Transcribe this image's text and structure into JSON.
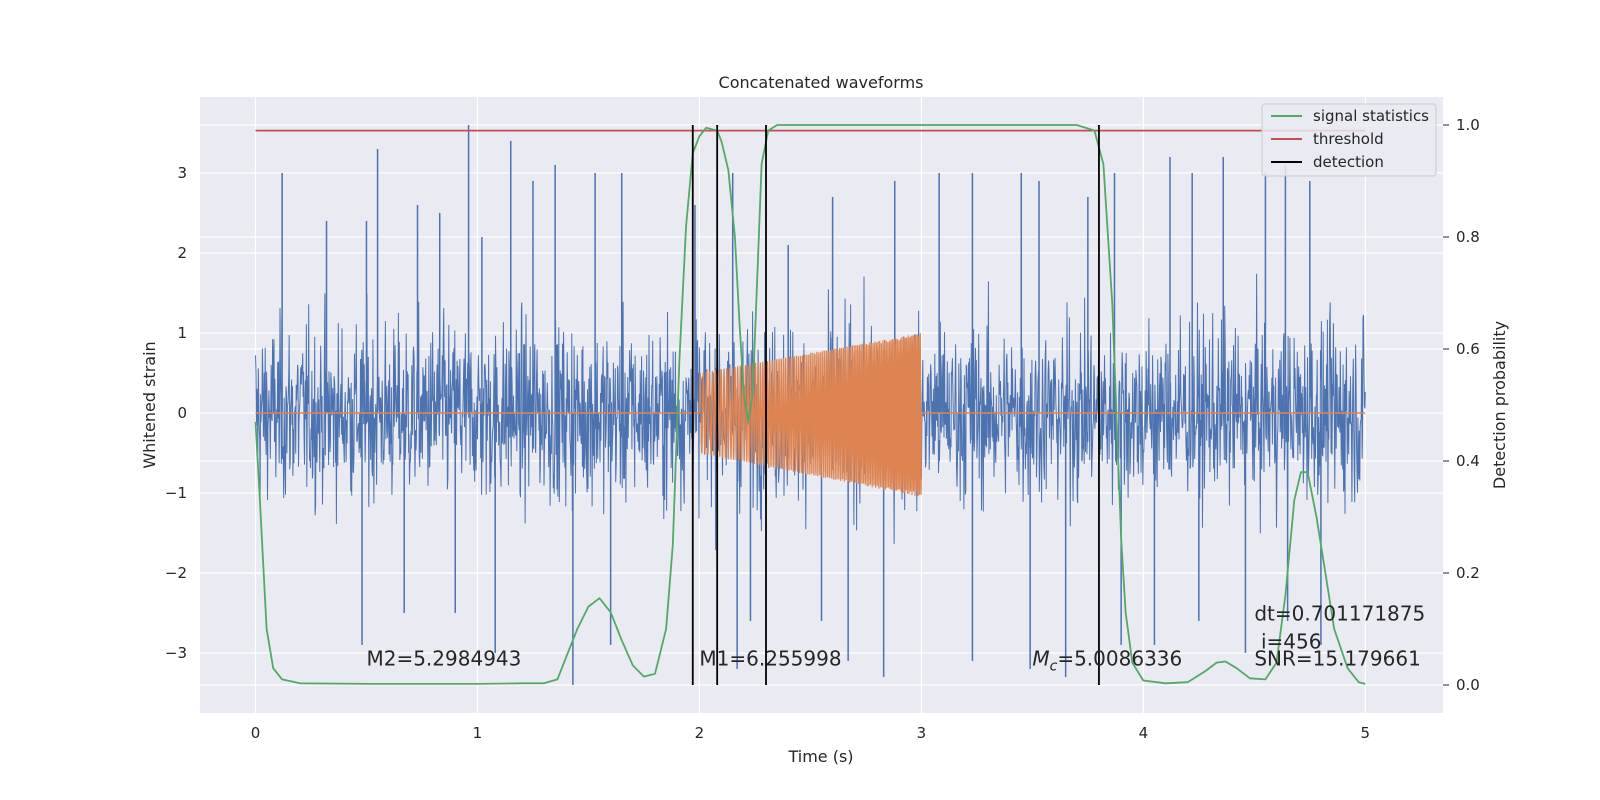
{
  "chart_data": {
    "type": "line",
    "title": "Concatenated waveforms",
    "xlabel": "Time (s)",
    "ylabel": "Whitened strain",
    "y2label": "Detection probability",
    "xlim": [
      -0.25,
      5.35
    ],
    "ylim": [
      -3.75,
      3.95
    ],
    "y2lim": [
      -0.05,
      1.05
    ],
    "x_ticks": [
      0,
      1,
      2,
      3,
      4,
      5
    ],
    "y_ticks": [
      -3,
      -2,
      -1,
      0,
      1,
      2,
      3
    ],
    "y_tick_labels": [
      "−3",
      "−2",
      "−1",
      "0",
      "1",
      "2",
      "3"
    ],
    "y2_ticks": [
      0.0,
      0.2,
      0.4,
      0.6,
      0.8,
      1.0
    ],
    "y2_tick_labels": [
      "0.0",
      "0.2",
      "0.4",
      "0.6",
      "0.8",
      "1.0"
    ],
    "grid": true,
    "legend_position": "top-right",
    "colors": {
      "strain": "#4c72b0",
      "waveform": "#dd8452",
      "signal": "#55a868",
      "threshold": "#c44e52",
      "detection": "#000000",
      "axes_bg": "#eaeaf2",
      "grid": "#ffffff"
    },
    "strain": {
      "x_range": [
        0,
        5
      ],
      "spikes": [
        {
          "t": 0.12,
          "v": 3.0
        },
        {
          "t": 0.32,
          "v": 2.4
        },
        {
          "t": 0.5,
          "v": 2.4
        },
        {
          "t": 0.55,
          "v": 3.3
        },
        {
          "t": 0.73,
          "v": 2.6
        },
        {
          "t": 0.83,
          "v": 2.5
        },
        {
          "t": 0.96,
          "v": 3.6
        },
        {
          "t": 1.02,
          "v": 2.2
        },
        {
          "t": 1.15,
          "v": 3.4
        },
        {
          "t": 1.25,
          "v": 2.9
        },
        {
          "t": 1.35,
          "v": 3.1
        },
        {
          "t": 1.53,
          "v": 3.0
        },
        {
          "t": 1.65,
          "v": 3.0
        },
        {
          "t": 1.98,
          "v": 2.6
        },
        {
          "t": 2.15,
          "v": 3.0
        },
        {
          "t": 2.4,
          "v": 2.1
        },
        {
          "t": 2.6,
          "v": 2.7
        },
        {
          "t": 2.88,
          "v": 2.9
        },
        {
          "t": 3.08,
          "v": 3.0
        },
        {
          "t": 3.23,
          "v": 3.0
        },
        {
          "t": 3.45,
          "v": 3.0
        },
        {
          "t": 3.53,
          "v": 2.9
        },
        {
          "t": 3.75,
          "v": 2.7
        },
        {
          "t": 3.87,
          "v": 3.0
        },
        {
          "t": 4.12,
          "v": 3.2
        },
        {
          "t": 4.22,
          "v": 3.0
        },
        {
          "t": 4.36,
          "v": 3.2
        },
        {
          "t": 4.55,
          "v": 3.0
        },
        {
          "t": 4.64,
          "v": 3.1
        },
        {
          "t": 4.75,
          "v": 2.9
        },
        {
          "t": 0.48,
          "v": -2.9
        },
        {
          "t": 0.67,
          "v": -2.5
        },
        {
          "t": 0.9,
          "v": -2.5
        },
        {
          "t": 1.08,
          "v": -3.0
        },
        {
          "t": 1.43,
          "v": -3.4
        },
        {
          "t": 1.6,
          "v": -2.9
        },
        {
          "t": 2.17,
          "v": -3.2
        },
        {
          "t": 2.23,
          "v": -2.6
        },
        {
          "t": 2.55,
          "v": -2.6
        },
        {
          "t": 2.67,
          "v": -3.1
        },
        {
          "t": 2.83,
          "v": -3.3
        },
        {
          "t": 3.23,
          "v": -3.1
        },
        {
          "t": 3.49,
          "v": -3.2
        },
        {
          "t": 3.65,
          "v": -3.3
        },
        {
          "t": 3.9,
          "v": -2.9
        },
        {
          "t": 4.05,
          "v": -2.9
        },
        {
          "t": 4.25,
          "v": -2.6
        },
        {
          "t": 4.46,
          "v": -3.0
        },
        {
          "t": 4.65,
          "v": -2.6
        },
        {
          "t": 4.8,
          "v": -2.9
        }
      ]
    },
    "waveform": {
      "flat_before": [
        0,
        2.0
      ],
      "chirp_range": [
        2.0,
        3.0
      ],
      "flat_after": [
        3.0,
        5.0
      ],
      "envelope_start": 0.5,
      "envelope_end": 1.0,
      "envelope_neg_start": -0.5,
      "envelope_neg_end": -1.05
    },
    "signal_statistics": {
      "name": "signal statistics",
      "x": [
        0.0,
        0.02,
        0.05,
        0.08,
        0.12,
        0.2,
        0.5,
        1.0,
        1.2,
        1.3,
        1.36,
        1.4,
        1.45,
        1.5,
        1.55,
        1.6,
        1.65,
        1.7,
        1.75,
        1.8,
        1.85,
        1.88,
        1.91,
        1.94,
        1.97,
        2.0,
        2.03,
        2.08,
        2.1,
        2.13,
        2.16,
        2.18,
        2.2,
        2.22,
        2.24,
        2.26,
        2.28,
        2.31,
        2.35,
        2.4,
        2.5,
        3.0,
        3.5,
        3.7,
        3.78,
        3.82,
        3.86,
        3.88,
        3.9,
        3.92,
        3.95,
        4.0,
        4.1,
        4.2,
        4.28,
        4.33,
        4.37,
        4.42,
        4.48,
        4.55,
        4.6,
        4.64,
        4.68,
        4.71,
        4.74,
        4.78,
        4.82,
        4.86,
        4.92,
        4.97,
        5.0
      ],
      "y": [
        0.47,
        0.33,
        0.1,
        0.03,
        0.01,
        0.003,
        0.002,
        0.002,
        0.003,
        0.003,
        0.01,
        0.05,
        0.1,
        0.14,
        0.155,
        0.13,
        0.08,
        0.035,
        0.015,
        0.02,
        0.1,
        0.25,
        0.58,
        0.82,
        0.95,
        0.98,
        0.995,
        0.99,
        0.97,
        0.92,
        0.8,
        0.65,
        0.52,
        0.47,
        0.52,
        0.72,
        0.93,
        0.99,
        1.0,
        1.0,
        1.0,
        1.0,
        1.0,
        1.0,
        0.99,
        0.93,
        0.68,
        0.47,
        0.26,
        0.13,
        0.04,
        0.008,
        0.003,
        0.005,
        0.025,
        0.04,
        0.042,
        0.03,
        0.012,
        0.01,
        0.04,
        0.16,
        0.33,
        0.38,
        0.38,
        0.3,
        0.2,
        0.1,
        0.03,
        0.005,
        0.002
      ]
    },
    "threshold": {
      "name": "threshold",
      "value": 0.99,
      "x_range": [
        0,
        5
      ]
    },
    "detection": {
      "name": "detection",
      "x": [
        1.97,
        2.08,
        2.3,
        3.8
      ],
      "y_range": [
        0.0,
        1.0
      ]
    },
    "annotations": [
      {
        "text": "M2=5.2984943",
        "x": 0.5,
        "y": 0.035
      },
      {
        "text": "M1=6.255998",
        "x": 2.0,
        "y": 0.035
      },
      {
        "text": "M_c=5.0086336",
        "prefix": "M",
        "sub": "c",
        "rest": "=5.0086336",
        "x": 3.5,
        "y": 0.035
      },
      {
        "text": "dt=0.701171875",
        "x": 4.5,
        "y": 0.115
      },
      {
        "text": "i=456",
        "x": 4.53,
        "y": 0.065
      },
      {
        "text": "SNR=15.179661",
        "x": 4.5,
        "y": 0.035
      }
    ]
  }
}
